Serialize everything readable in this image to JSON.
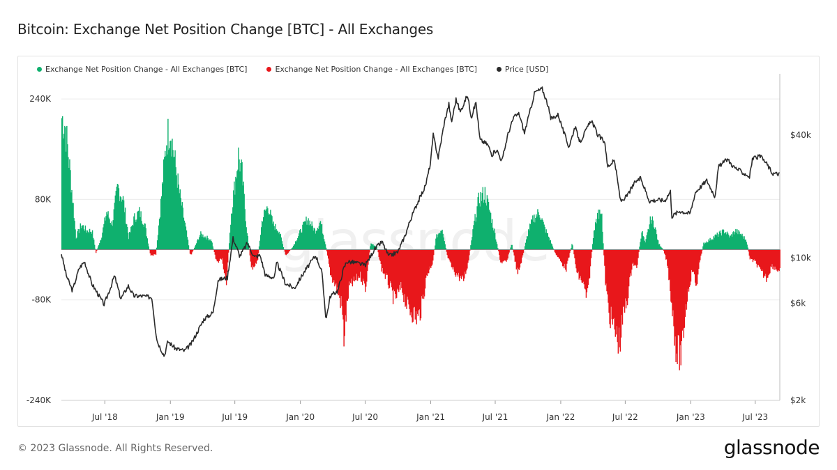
{
  "title": "Bitcoin: Exchange Net Position Change [BTC] - All Exchanges",
  "footer": "© 2023 Glassnode. All Rights Reserved.",
  "brand": "glassnode",
  "watermark": "glassnode",
  "legend": [
    {
      "label": "Exchange Net Position Change - All Exchanges [BTC]",
      "color": "#0fb06e"
    },
    {
      "label": "Exchange Net Position Change - All Exchanges [BTC]",
      "color": "#e8171b"
    },
    {
      "label": "Price [USD]",
      "color": "#2a2a2a"
    }
  ],
  "chart_data": {
    "type": "area",
    "x_range": [
      "2018-03-01",
      "2023-09-08"
    ],
    "x_ticks": [
      "Jul '18",
      "Jan '19",
      "Jul '19",
      "Jan '20",
      "Jul '20",
      "Jan '21",
      "Jul '21",
      "Jan '22",
      "Jul '22",
      "Jan '23",
      "Jul '23"
    ],
    "y_left": {
      "ticks": [
        "240K",
        "80K",
        "-80K",
        "-240K"
      ],
      "tick_values": [
        240000,
        80000,
        -80000,
        -240000
      ],
      "range": [
        -240000,
        280000
      ]
    },
    "y_right": {
      "scale": "log",
      "ticks": [
        "$40k",
        "$10k",
        "$6k",
        "$2k"
      ],
      "tick_values": [
        40000,
        10000,
        6000,
        2000
      ],
      "range": [
        2000,
        80000
      ]
    },
    "colors": {
      "positive": "#0fb06e",
      "negative": "#e8171b",
      "price": "#2a2a2a"
    },
    "net_position_keypoints": [
      [
        "2018-03-01",
        210000
      ],
      [
        "2018-03-10",
        200000
      ],
      [
        "2018-03-25",
        120000
      ],
      [
        "2018-04-10",
        20000
      ],
      [
        "2018-04-25",
        40000
      ],
      [
        "2018-05-10",
        30000
      ],
      [
        "2018-05-25",
        30000
      ],
      [
        "2018-06-05",
        -5000
      ],
      [
        "2018-06-20",
        20000
      ],
      [
        "2018-07-05",
        60000
      ],
      [
        "2018-07-20",
        40000
      ],
      [
        "2018-08-05",
        100000
      ],
      [
        "2018-08-20",
        80000
      ],
      [
        "2018-09-05",
        20000
      ],
      [
        "2018-09-20",
        50000
      ],
      [
        "2018-10-05",
        60000
      ],
      [
        "2018-10-20",
        40000
      ],
      [
        "2018-11-05",
        -10000
      ],
      [
        "2018-11-20",
        -8000
      ],
      [
        "2018-12-05",
        80000
      ],
      [
        "2018-12-20",
        175000
      ],
      [
        "2018-12-30",
        195000
      ],
      [
        "2019-01-10",
        150000
      ],
      [
        "2019-01-25",
        90000
      ],
      [
        "2019-02-10",
        40000
      ],
      [
        "2019-02-25",
        -10000
      ],
      [
        "2019-03-10",
        5000
      ],
      [
        "2019-03-25",
        25000
      ],
      [
        "2019-04-10",
        20000
      ],
      [
        "2019-04-25",
        15000
      ],
      [
        "2019-05-10",
        -20000
      ],
      [
        "2019-05-25",
        -15000
      ],
      [
        "2019-06-05",
        -60000
      ],
      [
        "2019-06-20",
        60000
      ],
      [
        "2019-07-01",
        110000
      ],
      [
        "2019-07-10",
        150000
      ],
      [
        "2019-07-20",
        120000
      ],
      [
        "2019-08-01",
        40000
      ],
      [
        "2019-08-15",
        -30000
      ],
      [
        "2019-09-01",
        -20000
      ],
      [
        "2019-09-15",
        50000
      ],
      [
        "2019-10-01",
        70000
      ],
      [
        "2019-10-15",
        40000
      ],
      [
        "2019-11-01",
        30000
      ],
      [
        "2019-11-20",
        -10000
      ],
      [
        "2019-12-10",
        5000
      ],
      [
        "2020-01-01",
        30000
      ],
      [
        "2020-01-20",
        50000
      ],
      [
        "2020-02-10",
        30000
      ],
      [
        "2020-02-25",
        45000
      ],
      [
        "2020-03-10",
        10000
      ],
      [
        "2020-03-25",
        -40000
      ],
      [
        "2020-04-10",
        -60000
      ],
      [
        "2020-04-25",
        -90000
      ],
      [
        "2020-05-01",
        -140000
      ],
      [
        "2020-05-15",
        -60000
      ],
      [
        "2020-06-01",
        -50000
      ],
      [
        "2020-06-15",
        -40000
      ],
      [
        "2020-07-01",
        -60000
      ],
      [
        "2020-07-15",
        10000
      ],
      [
        "2020-08-01",
        5000
      ],
      [
        "2020-08-15",
        -30000
      ],
      [
        "2020-09-01",
        -50000
      ],
      [
        "2020-09-20",
        -80000
      ],
      [
        "2020-10-10",
        -60000
      ],
      [
        "2020-10-25",
        -90000
      ],
      [
        "2020-11-10",
        -100000
      ],
      [
        "2020-11-25",
        -110000
      ],
      [
        "2020-12-05",
        -90000
      ],
      [
        "2020-12-20",
        -40000
      ],
      [
        "2021-01-05",
        -20000
      ],
      [
        "2021-01-15",
        20000
      ],
      [
        "2021-02-01",
        35000
      ],
      [
        "2021-02-15",
        -10000
      ],
      [
        "2021-03-01",
        -30000
      ],
      [
        "2021-03-15",
        -40000
      ],
      [
        "2021-04-01",
        -50000
      ],
      [
        "2021-04-15",
        -20000
      ],
      [
        "2021-05-01",
        40000
      ],
      [
        "2021-05-15",
        80000
      ],
      [
        "2021-06-01",
        90000
      ],
      [
        "2021-06-15",
        60000
      ],
      [
        "2021-07-01",
        20000
      ],
      [
        "2021-07-15",
        -20000
      ],
      [
        "2021-08-01",
        -20000
      ],
      [
        "2021-08-15",
        10000
      ],
      [
        "2021-09-01",
        -40000
      ],
      [
        "2021-09-15",
        -10000
      ],
      [
        "2021-10-01",
        30000
      ],
      [
        "2021-10-15",
        50000
      ],
      [
        "2021-11-01",
        60000
      ],
      [
        "2021-11-15",
        35000
      ],
      [
        "2021-12-01",
        15000
      ],
      [
        "2021-12-15",
        -5000
      ],
      [
        "2022-01-01",
        -20000
      ],
      [
        "2022-01-15",
        -30000
      ],
      [
        "2022-02-01",
        10000
      ],
      [
        "2022-02-15",
        -40000
      ],
      [
        "2022-03-01",
        -50000
      ],
      [
        "2022-03-15",
        -80000
      ],
      [
        "2022-04-01",
        20000
      ],
      [
        "2022-04-15",
        60000
      ],
      [
        "2022-04-25",
        50000
      ],
      [
        "2022-05-05",
        -50000
      ],
      [
        "2022-05-15",
        -100000
      ],
      [
        "2022-06-01",
        -130000
      ],
      [
        "2022-06-15",
        -150000
      ],
      [
        "2022-06-25",
        -100000
      ],
      [
        "2022-07-05",
        -80000
      ],
      [
        "2022-07-20",
        -20000
      ],
      [
        "2022-08-01",
        -30000
      ],
      [
        "2022-08-15",
        30000
      ],
      [
        "2022-08-25",
        10000
      ],
      [
        "2022-09-10",
        50000
      ],
      [
        "2022-09-20",
        40000
      ],
      [
        "2022-10-01",
        10000
      ],
      [
        "2022-10-15",
        0
      ],
      [
        "2022-10-25",
        -20000
      ],
      [
        "2022-11-01",
        -50000
      ],
      [
        "2022-11-10",
        -100000
      ],
      [
        "2022-11-20",
        -160000
      ],
      [
        "2022-12-05",
        -170000
      ],
      [
        "2022-12-15",
        -100000
      ],
      [
        "2022-12-25",
        -60000
      ],
      [
        "2023-01-05",
        -30000
      ],
      [
        "2023-01-15",
        -60000
      ],
      [
        "2023-01-25",
        -20000
      ],
      [
        "2023-02-05",
        10000
      ],
      [
        "2023-02-20",
        15000
      ],
      [
        "2023-03-05",
        20000
      ],
      [
        "2023-03-20",
        25000
      ],
      [
        "2023-04-05",
        30000
      ],
      [
        "2023-04-20",
        20000
      ],
      [
        "2023-05-05",
        30000
      ],
      [
        "2023-05-20",
        25000
      ],
      [
        "2023-06-05",
        15000
      ],
      [
        "2023-06-15",
        -15000
      ],
      [
        "2023-07-01",
        -20000
      ],
      [
        "2023-07-15",
        -35000
      ],
      [
        "2023-08-01",
        -45000
      ],
      [
        "2023-08-15",
        -25000
      ],
      [
        "2023-09-08",
        -35000
      ]
    ],
    "price_keypoints": [
      [
        "2018-03-01",
        10500
      ],
      [
        "2018-03-15",
        8200
      ],
      [
        "2018-04-01",
        6900
      ],
      [
        "2018-04-20",
        8900
      ],
      [
        "2018-05-05",
        9600
      ],
      [
        "2018-05-25",
        7500
      ],
      [
        "2018-06-15",
        6500
      ],
      [
        "2018-06-29",
        5900
      ],
      [
        "2018-07-20",
        7400
      ],
      [
        "2018-07-28",
        8200
      ],
      [
        "2018-08-15",
        6300
      ],
      [
        "2018-09-05",
        7300
      ],
      [
        "2018-09-20",
        6500
      ],
      [
        "2018-10-15",
        6500
      ],
      [
        "2018-11-10",
        6400
      ],
      [
        "2018-11-20",
        4500
      ],
      [
        "2018-11-25",
        3900
      ],
      [
        "2018-12-15",
        3300
      ],
      [
        "2018-12-25",
        3900
      ],
      [
        "2019-01-15",
        3600
      ],
      [
        "2019-02-10",
        3500
      ],
      [
        "2019-03-01",
        3800
      ],
      [
        "2019-04-05",
        5000
      ],
      [
        "2019-05-01",
        5400
      ],
      [
        "2019-05-15",
        7800
      ],
      [
        "2019-06-10",
        8000
      ],
      [
        "2019-06-26",
        12500
      ],
      [
        "2019-07-15",
        10200
      ],
      [
        "2019-08-05",
        11800
      ],
      [
        "2019-08-25",
        10100
      ],
      [
        "2019-09-10",
        10300
      ],
      [
        "2019-09-25",
        8200
      ],
      [
        "2019-10-20",
        8000
      ],
      [
        "2019-10-27",
        9500
      ],
      [
        "2019-11-20",
        7500
      ],
      [
        "2019-12-15",
        7100
      ],
      [
        "2020-01-15",
        8700
      ],
      [
        "2020-02-13",
        10300
      ],
      [
        "2020-03-01",
        8600
      ],
      [
        "2020-03-13",
        5000
      ],
      [
        "2020-03-25",
        6500
      ],
      [
        "2020-04-15",
        6900
      ],
      [
        "2020-05-01",
        8800
      ],
      [
        "2020-05-10",
        9600
      ],
      [
        "2020-06-01",
        9500
      ],
      [
        "2020-07-01",
        9200
      ],
      [
        "2020-07-27",
        11000
      ],
      [
        "2020-08-17",
        12000
      ],
      [
        "2020-09-05",
        10200
      ],
      [
        "2020-10-01",
        10700
      ],
      [
        "2020-10-21",
        12900
      ],
      [
        "2020-11-05",
        15400
      ],
      [
        "2020-11-25",
        18700
      ],
      [
        "2020-12-17",
        22500
      ],
      [
        "2020-12-31",
        29000
      ],
      [
        "2021-01-08",
        40000
      ],
      [
        "2021-01-22",
        31000
      ],
      [
        "2021-02-08",
        46000
      ],
      [
        "2021-02-21",
        57000
      ],
      [
        "2021-02-28",
        46000
      ],
      [
        "2021-03-13",
        60000
      ],
      [
        "2021-03-25",
        52000
      ],
      [
        "2021-04-14",
        63000
      ],
      [
        "2021-04-25",
        49000
      ],
      [
        "2021-05-08",
        58000
      ],
      [
        "2021-05-19",
        38000
      ],
      [
        "2021-06-10",
        36000
      ],
      [
        "2021-06-22",
        32000
      ],
      [
        "2021-07-05",
        34000
      ],
      [
        "2021-07-20",
        29800
      ],
      [
        "2021-08-05",
        40000
      ],
      [
        "2021-08-22",
        49000
      ],
      [
        "2021-09-06",
        51000
      ],
      [
        "2021-09-21",
        41000
      ],
      [
        "2021-10-05",
        51000
      ],
      [
        "2021-10-20",
        65000
      ],
      [
        "2021-11-10",
        67500
      ],
      [
        "2021-11-25",
        57000
      ],
      [
        "2021-12-04",
        48000
      ],
      [
        "2021-12-25",
        50500
      ],
      [
        "2022-01-10",
        41000
      ],
      [
        "2022-01-24",
        35000
      ],
      [
        "2022-02-10",
        44000
      ],
      [
        "2022-02-24",
        37000
      ],
      [
        "2022-03-28",
        47500
      ],
      [
        "2022-04-15",
        40000
      ],
      [
        "2022-05-05",
        37000
      ],
      [
        "2022-05-12",
        28000
      ],
      [
        "2022-06-01",
        30000
      ],
      [
        "2022-06-18",
        19000
      ],
      [
        "2022-07-05",
        20000
      ],
      [
        "2022-07-30",
        23700
      ],
      [
        "2022-08-14",
        24500
      ],
      [
        "2022-09-07",
        19000
      ],
      [
        "2022-10-01",
        19300
      ],
      [
        "2022-10-20",
        19100
      ],
      [
        "2022-11-05",
        21200
      ],
      [
        "2022-11-09",
        16000
      ],
      [
        "2022-12-01",
        17000
      ],
      [
        "2022-12-30",
        16500
      ],
      [
        "2023-01-14",
        21000
      ],
      [
        "2023-02-15",
        24000
      ],
      [
        "2023-03-10",
        20000
      ],
      [
        "2023-03-20",
        28000
      ],
      [
        "2023-04-14",
        30500
      ],
      [
        "2023-05-01",
        28000
      ],
      [
        "2023-06-15",
        25000
      ],
      [
        "2023-06-23",
        30500
      ],
      [
        "2023-07-14",
        31500
      ],
      [
        "2023-08-01",
        29200
      ],
      [
        "2023-08-18",
        26000
      ],
      [
        "2023-09-08",
        25800
      ]
    ]
  }
}
